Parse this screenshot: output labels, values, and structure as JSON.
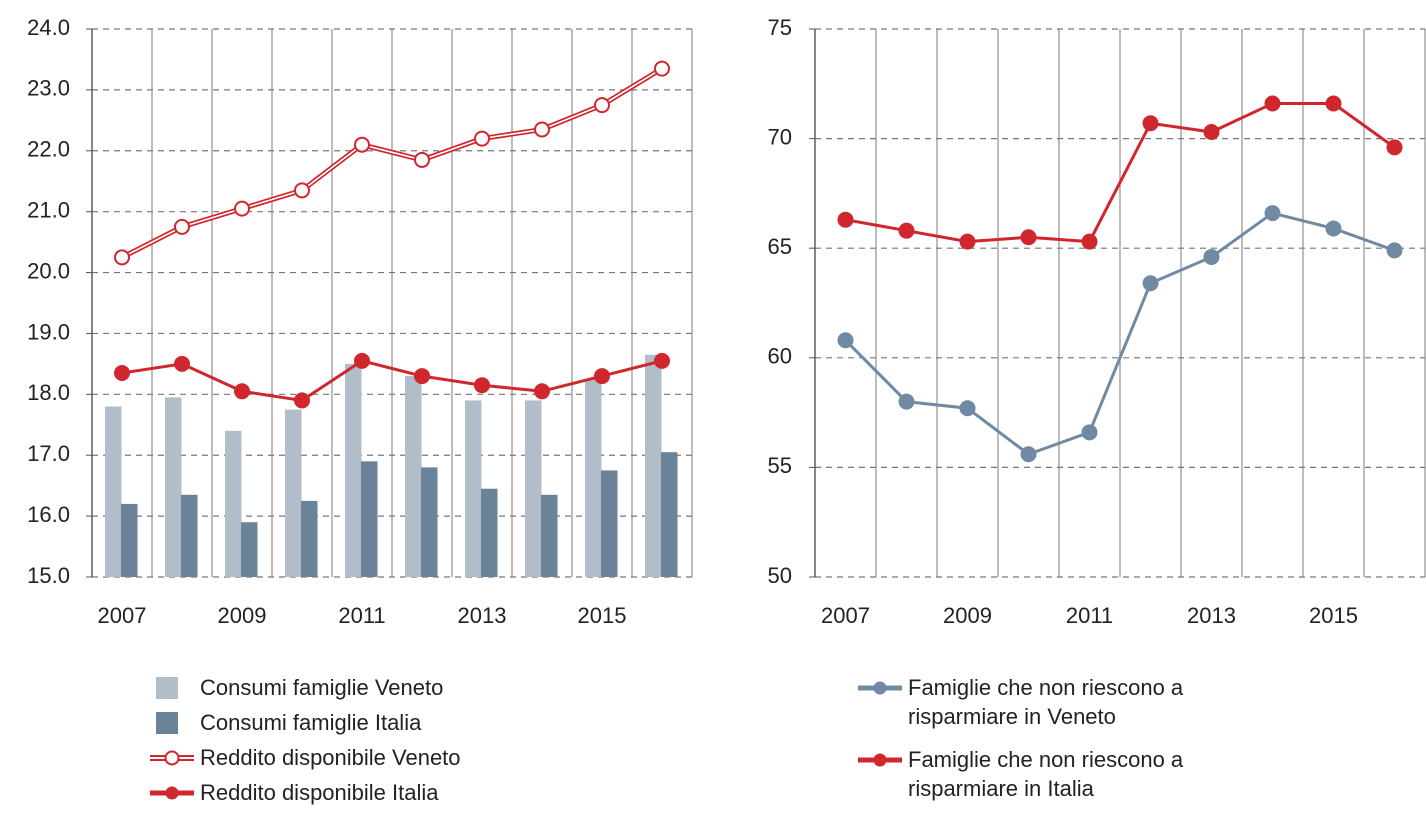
{
  "chart_data": [
    {
      "type": "combo",
      "categories": [
        "2007",
        null,
        "2009",
        null,
        "2011",
        null,
        "2013",
        null,
        "2015",
        null
      ],
      "ylim": [
        15,
        24
      ],
      "yticks": [
        {
          "value": 15,
          "label": "15.0"
        },
        {
          "value": 16,
          "label": "16.0"
        },
        {
          "value": 17,
          "label": "17.0"
        },
        {
          "value": 18,
          "label": "18.0"
        },
        {
          "value": 19,
          "label": "19.0"
        },
        {
          "value": 20,
          "label": "20.0"
        },
        {
          "value": 21,
          "label": "21.0"
        },
        {
          "value": 22,
          "label": "22.0"
        },
        {
          "value": 23,
          "label": "23.0"
        },
        {
          "value": 24,
          "label": "24.0"
        }
      ],
      "grid": true,
      "series": [
        {
          "name": "Consumi famiglie Veneto",
          "kind": "bar",
          "color": "#b1bdc8",
          "values": [
            17.8,
            17.95,
            17.4,
            17.75,
            18.5,
            18.3,
            17.9,
            17.9,
            18.25,
            18.65
          ]
        },
        {
          "name": "Consumi famiglie Italia",
          "kind": "bar",
          "color": "#6b8399",
          "values": [
            16.2,
            16.35,
            15.9,
            16.25,
            16.9,
            16.8,
            16.45,
            16.35,
            16.75,
            17.05
          ]
        },
        {
          "name": "Reddito disponibile Veneto",
          "kind": "line",
          "marker": "open",
          "color": "#d0262d",
          "values": [
            20.25,
            20.75,
            21.05,
            21.35,
            22.1,
            21.85,
            22.2,
            22.35,
            22.75,
            23.35
          ]
        },
        {
          "name": "Reddito disponibile Italia",
          "kind": "line",
          "marker": "filled",
          "color": "#d0262d",
          "values": [
            18.35,
            18.5,
            18.05,
            17.9,
            18.55,
            18.3,
            18.15,
            18.05,
            18.3,
            18.55
          ]
        }
      ]
    },
    {
      "type": "line",
      "categories": [
        "2007",
        null,
        "2009",
        null,
        "2011",
        null,
        "2013",
        null,
        "2015",
        null
      ],
      "ylim": [
        50,
        75
      ],
      "yticks": [
        50,
        55,
        60,
        65,
        70,
        75
      ],
      "grid": true,
      "series": [
        {
          "name": "Famiglie che non riescono a risparmiare in Veneto",
          "kind": "line",
          "marker": "filled",
          "color": "#6f8aa2",
          "values": [
            60.8,
            58.0,
            57.7,
            55.6,
            56.6,
            63.4,
            64.6,
            66.6,
            65.9,
            64.9
          ]
        },
        {
          "name": "Famiglie che non riescono a risparmiare in Italia",
          "kind": "line",
          "marker": "filled",
          "color": "#d0262d",
          "values": [
            66.3,
            65.8,
            65.3,
            65.5,
            65.3,
            70.7,
            70.3,
            71.6,
            71.6,
            69.6
          ]
        }
      ]
    }
  ]
}
